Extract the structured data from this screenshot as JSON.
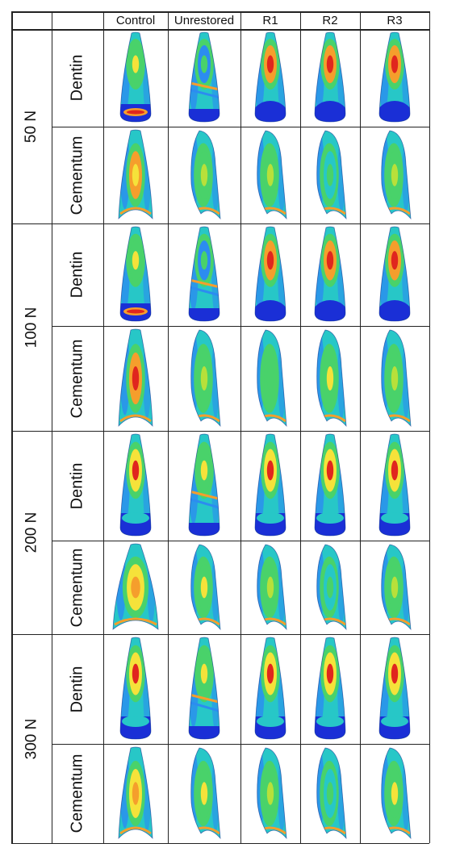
{
  "columns": [
    "Control",
    "Unrestored",
    "R1",
    "R2",
    "R3"
  ],
  "colors": {
    "min": "#1a2fd6",
    "low": "#2c8cf0",
    "lowmid": "#27c7c7",
    "mid": "#49d26a",
    "midhigh": "#b8e03a",
    "high": "#f5e23a",
    "higher": "#f59e2c",
    "max": "#e0261e"
  },
  "groups": [
    {
      "force": "50 N",
      "rows": [
        {
          "tissue": "Dentin",
          "cells": [
            {
              "shape": "crown",
              "hot": "mid",
              "peak": "high",
              "base": "ring"
            },
            {
              "shape": "crown",
              "hot": "low",
              "peak": "mid",
              "base": "broken"
            },
            {
              "shape": "crown",
              "hot": "higher",
              "peak": "max",
              "base": "blue"
            },
            {
              "shape": "crown",
              "hot": "higher",
              "peak": "max",
              "base": "blue"
            },
            {
              "shape": "crown",
              "hot": "higher",
              "peak": "max",
              "base": "blue"
            }
          ]
        },
        {
          "tissue": "Cementum",
          "cells": [
            {
              "shape": "root",
              "hot": "higher",
              "peak": "high"
            },
            {
              "shape": "rootside",
              "hot": "mid",
              "peak": "midhigh"
            },
            {
              "shape": "rootside",
              "hot": "mid",
              "peak": "midhigh"
            },
            {
              "shape": "rootside",
              "hot": "lowmid",
              "peak": "mid"
            },
            {
              "shape": "rootside",
              "hot": "mid",
              "peak": "midhigh"
            }
          ]
        }
      ]
    },
    {
      "force": "100 N",
      "rows": [
        {
          "tissue": "Dentin",
          "cells": [
            {
              "shape": "crown",
              "hot": "mid",
              "peak": "high",
              "base": "ring"
            },
            {
              "shape": "crown",
              "hot": "low",
              "peak": "mid",
              "base": "broken"
            },
            {
              "shape": "crown",
              "hot": "higher",
              "peak": "max",
              "base": "blue"
            },
            {
              "shape": "crown",
              "hot": "higher",
              "peak": "max",
              "base": "blue"
            },
            {
              "shape": "crown",
              "hot": "higher",
              "peak": "max",
              "base": "blue"
            }
          ]
        },
        {
          "tissue": "Cementum",
          "cells": [
            {
              "shape": "root",
              "hot": "higher",
              "peak": "max"
            },
            {
              "shape": "rootside",
              "hot": "mid",
              "peak": "midhigh"
            },
            {
              "shape": "rootside",
              "hot": "mid",
              "peak": "mid"
            },
            {
              "shape": "rootside",
              "hot": "mid",
              "peak": "high"
            },
            {
              "shape": "rootside",
              "hot": "mid",
              "peak": "midhigh"
            }
          ]
        }
      ]
    },
    {
      "force": "200 N",
      "rows": [
        {
          "tissue": "Dentin",
          "cells": [
            {
              "shape": "crown",
              "hot": "high",
              "peak": "max",
              "base": "band"
            },
            {
              "shape": "crown",
              "hot": "mid",
              "peak": "high",
              "base": "broken"
            },
            {
              "shape": "crown",
              "hot": "high",
              "peak": "max",
              "base": "band"
            },
            {
              "shape": "crown",
              "hot": "high",
              "peak": "max",
              "base": "band"
            },
            {
              "shape": "crown",
              "hot": "high",
              "peak": "max",
              "base": "band"
            }
          ]
        },
        {
          "tissue": "Cementum",
          "cells": [
            {
              "shape": "wide",
              "hot": "high",
              "peak": "higher"
            },
            {
              "shape": "rootside",
              "hot": "mid",
              "peak": "high"
            },
            {
              "shape": "rootside",
              "hot": "mid",
              "peak": "midhigh"
            },
            {
              "shape": "rootside",
              "hot": "lowmid",
              "peak": "mid"
            },
            {
              "shape": "rootside",
              "hot": "mid",
              "peak": "midhigh"
            }
          ]
        }
      ]
    },
    {
      "force": "300 N",
      "rows": [
        {
          "tissue": "Dentin",
          "cells": [
            {
              "shape": "crown",
              "hot": "high",
              "peak": "max",
              "base": "band"
            },
            {
              "shape": "crown",
              "hot": "mid",
              "peak": "high",
              "base": "broken"
            },
            {
              "shape": "crown",
              "hot": "high",
              "peak": "max",
              "base": "band"
            },
            {
              "shape": "crown",
              "hot": "high",
              "peak": "max",
              "base": "band"
            },
            {
              "shape": "crown",
              "hot": "high",
              "peak": "max",
              "base": "band"
            }
          ]
        },
        {
          "tissue": "Cementum",
          "cells": [
            {
              "shape": "root",
              "hot": "high",
              "peak": "higher"
            },
            {
              "shape": "rootside",
              "hot": "mid",
              "peak": "high"
            },
            {
              "shape": "rootside",
              "hot": "mid",
              "peak": "midhigh"
            },
            {
              "shape": "rootside",
              "hot": "lowmid",
              "peak": "mid"
            },
            {
              "shape": "rootside",
              "hot": "mid",
              "peak": "high"
            }
          ]
        }
      ]
    }
  ]
}
